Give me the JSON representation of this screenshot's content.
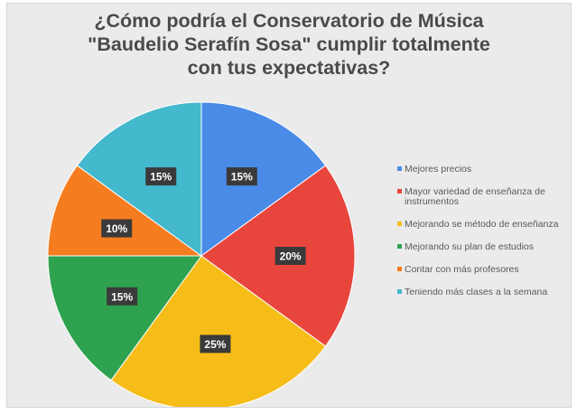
{
  "chart_data": {
    "type": "pie",
    "title": "¿Cómo podría el Conservatorio de Música \"Baudelio Serafín Sosa\" cumplir totalmente con tus expectativas?",
    "title_lines": [
      "¿Cómo podría el Conservatorio de Música",
      "\"Baudelio Serafín Sosa\" cumplir totalmente",
      "con tus expectativas?"
    ],
    "legend_position": "right",
    "slices": [
      {
        "label": "Mejores precios",
        "value": 15,
        "display": "15%",
        "color": "#4a8be8"
      },
      {
        "label": "Mayor variedad de enseñanza de instrumentos",
        "value": 20,
        "display": "20%",
        "color": "#e8453c"
      },
      {
        "label": "Mejorando se método de enseñanza",
        "value": 25,
        "display": "25%",
        "color": "#f6bd19"
      },
      {
        "label": "Mejorando su plan de estudios",
        "value": 15,
        "display": "15%",
        "color": "#2fa24f"
      },
      {
        "label": "Contar con más profesores",
        "value": 10,
        "display": "10%",
        "color": "#f57c1f"
      },
      {
        "label": "Teniendo más clases a la semana",
        "value": 15,
        "display": "15%",
        "color": "#44b8cc"
      }
    ]
  }
}
